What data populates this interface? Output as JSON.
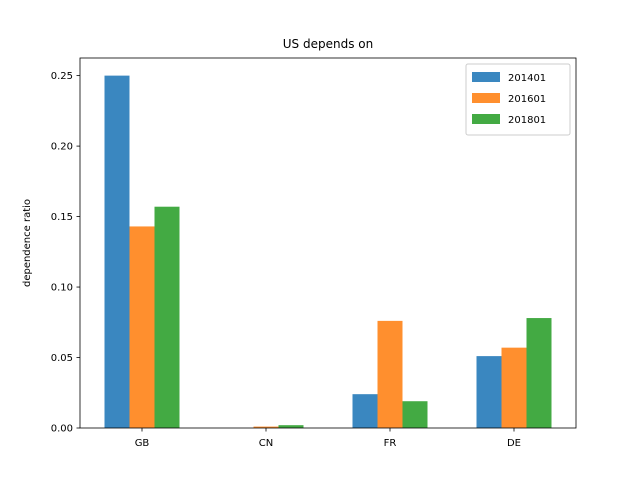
{
  "chart_data": {
    "type": "bar",
    "title": "US depends on",
    "xlabel": "",
    "ylabel": "dependence ratio",
    "categories": [
      "GB",
      "CN",
      "FR",
      "DE"
    ],
    "series": [
      {
        "name": "201401",
        "color": "#3a87c0",
        "values": [
          0.25,
          0.0,
          0.024,
          0.051
        ]
      },
      {
        "name": "201601",
        "color": "#ff8f2e",
        "values": [
          0.143,
          0.001,
          0.076,
          0.057
        ]
      },
      {
        "name": "201801",
        "color": "#43aa43",
        "values": [
          0.157,
          0.002,
          0.019,
          0.078
        ]
      }
    ],
    "ylim": [
      0,
      0.2625
    ],
    "yticks": [
      "0.00",
      "0.05",
      "0.10",
      "0.15",
      "0.20",
      "0.25"
    ],
    "grid": false,
    "legend_position": "top-right"
  }
}
